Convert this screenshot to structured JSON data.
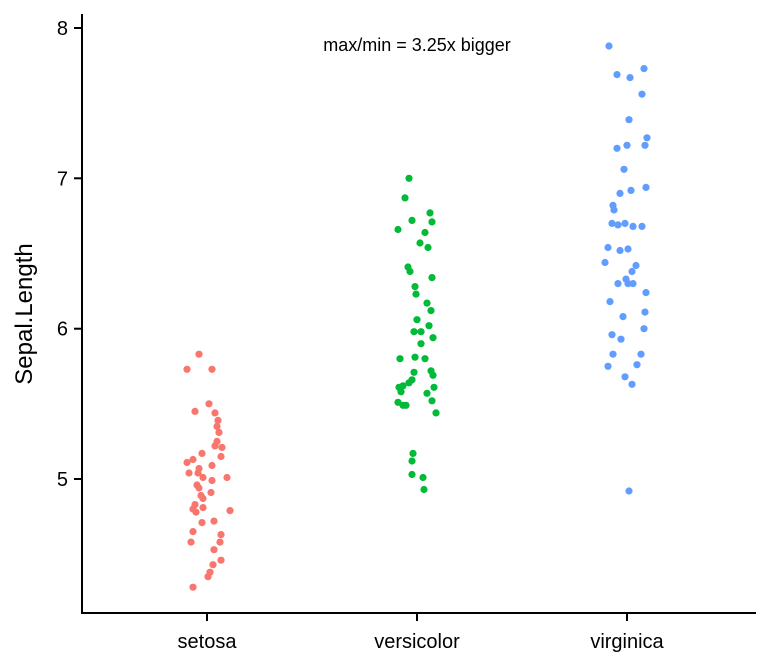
{
  "chart_data": {
    "type": "scatter",
    "subtype": "jitter-strip",
    "title": "",
    "annotation_text": "max/min = 3.25x bigger",
    "annotation_anchor": {
      "category": "versicolor",
      "y_value": 7.89
    },
    "xlabel": "",
    "ylabel": "Sepal.Length",
    "categories": [
      "setosa",
      "versicolor",
      "virginica"
    ],
    "yticks": [
      "5",
      "6",
      "7",
      "8"
    ],
    "ylim": [
      4.11,
      8.09
    ],
    "grid": false,
    "legend": "none",
    "colors": {
      "setosa": "#F8766D",
      "versicolor": "#00BA38",
      "virginica": "#619CFF",
      "axis": "#000000",
      "background": "#FFFFFF"
    },
    "series": [
      {
        "name": "setosa",
        "points": [
          [
            -8,
            5.83
          ],
          [
            -20,
            5.73
          ],
          [
            5,
            5.73
          ],
          [
            2,
            5.5
          ],
          [
            -12,
            5.45
          ],
          [
            8,
            5.44
          ],
          [
            11,
            5.39
          ],
          [
            10,
            5.35
          ],
          [
            12,
            5.31
          ],
          [
            10,
            5.25
          ],
          [
            8,
            5.22
          ],
          [
            15,
            5.21
          ],
          [
            -5,
            5.17
          ],
          [
            14,
            5.15
          ],
          [
            -14,
            5.13
          ],
          [
            -20,
            5.11
          ],
          [
            5,
            5.09
          ],
          [
            -8,
            5.07
          ],
          [
            -18,
            5.04
          ],
          [
            -9,
            5.04
          ],
          [
            -4,
            5.01
          ],
          [
            20,
            5.01
          ],
          [
            5,
            4.99
          ],
          [
            -10,
            4.96
          ],
          [
            -8,
            4.94
          ],
          [
            4,
            4.91
          ],
          [
            -6,
            4.89
          ],
          [
            -4,
            4.87
          ],
          [
            -12,
            4.83
          ],
          [
            -4,
            4.81
          ],
          [
            -14,
            4.8
          ],
          [
            23,
            4.79
          ],
          [
            -11,
            4.78
          ],
          [
            7,
            4.72
          ],
          [
            -5,
            4.71
          ],
          [
            -14,
            4.65
          ],
          [
            14,
            4.63
          ],
          [
            -16,
            4.58
          ],
          [
            13,
            4.58
          ],
          [
            7,
            4.53
          ],
          [
            14,
            4.46
          ],
          [
            6,
            4.43
          ],
          [
            3,
            4.38
          ],
          [
            1,
            4.35
          ],
          [
            -14,
            4.28
          ]
        ]
      },
      {
        "name": "versicolor",
        "points": [
          [
            -8,
            7.0
          ],
          [
            -12,
            6.87
          ],
          [
            13,
            6.77
          ],
          [
            -5,
            6.72
          ],
          [
            15,
            6.71
          ],
          [
            -19,
            6.66
          ],
          [
            8,
            6.64
          ],
          [
            3,
            6.57
          ],
          [
            11,
            6.54
          ],
          [
            -9,
            6.41
          ],
          [
            -7,
            6.38
          ],
          [
            15,
            6.34
          ],
          [
            -2,
            6.28
          ],
          [
            -1,
            6.23
          ],
          [
            10,
            6.17
          ],
          [
            14,
            6.12
          ],
          [
            0,
            6.06
          ],
          [
            12,
            6.02
          ],
          [
            -3,
            5.98
          ],
          [
            4,
            5.98
          ],
          [
            16,
            5.94
          ],
          [
            4,
            5.9
          ],
          [
            -17,
            5.8
          ],
          [
            -2,
            5.81
          ],
          [
            8,
            5.8
          ],
          [
            -3,
            5.71
          ],
          [
            14,
            5.72
          ],
          [
            16,
            5.69
          ],
          [
            -5,
            5.66
          ],
          [
            -8,
            5.64
          ],
          [
            -18,
            5.61
          ],
          [
            -14,
            5.62
          ],
          [
            17,
            5.61
          ],
          [
            -16,
            5.58
          ],
          [
            10,
            5.57
          ],
          [
            15,
            5.52
          ],
          [
            -19,
            5.51
          ],
          [
            -14,
            5.49
          ],
          [
            -11,
            5.49
          ],
          [
            19,
            5.44
          ],
          [
            -4,
            5.17
          ],
          [
            -5,
            5.12
          ],
          [
            -5,
            5.03
          ],
          [
            6,
            5.01
          ],
          [
            7,
            4.93
          ]
        ]
      },
      {
        "name": "virginica",
        "points": [
          [
            -18,
            7.88
          ],
          [
            17,
            7.73
          ],
          [
            -10,
            7.69
          ],
          [
            3,
            7.67
          ],
          [
            15,
            7.56
          ],
          [
            2,
            7.39
          ],
          [
            20,
            7.27
          ],
          [
            0,
            7.22
          ],
          [
            18,
            7.22
          ],
          [
            -10,
            7.2
          ],
          [
            -3,
            7.06
          ],
          [
            19,
            6.94
          ],
          [
            4,
            6.92
          ],
          [
            -7,
            6.9
          ],
          [
            -14,
            6.82
          ],
          [
            -13,
            6.79
          ],
          [
            -15,
            6.7
          ],
          [
            -9,
            6.69
          ],
          [
            -2,
            6.7
          ],
          [
            6,
            6.68
          ],
          [
            15,
            6.68
          ],
          [
            -19,
            6.54
          ],
          [
            -7,
            6.52
          ],
          [
            1,
            6.53
          ],
          [
            -22,
            6.44
          ],
          [
            9,
            6.42
          ],
          [
            5,
            6.38
          ],
          [
            -1,
            6.33
          ],
          [
            -9,
            6.3
          ],
          [
            1,
            6.3
          ],
          [
            6,
            6.3
          ],
          [
            19,
            6.24
          ],
          [
            -17,
            6.18
          ],
          [
            18,
            6.11
          ],
          [
            -4,
            6.08
          ],
          [
            17,
            6.0
          ],
          [
            -15,
            5.96
          ],
          [
            -6,
            5.93
          ],
          [
            -14,
            5.83
          ],
          [
            14,
            5.83
          ],
          [
            10,
            5.76
          ],
          [
            -19,
            5.75
          ],
          [
            -2,
            5.68
          ],
          [
            5,
            5.63
          ],
          [
            2,
            4.92
          ]
        ]
      }
    ]
  }
}
